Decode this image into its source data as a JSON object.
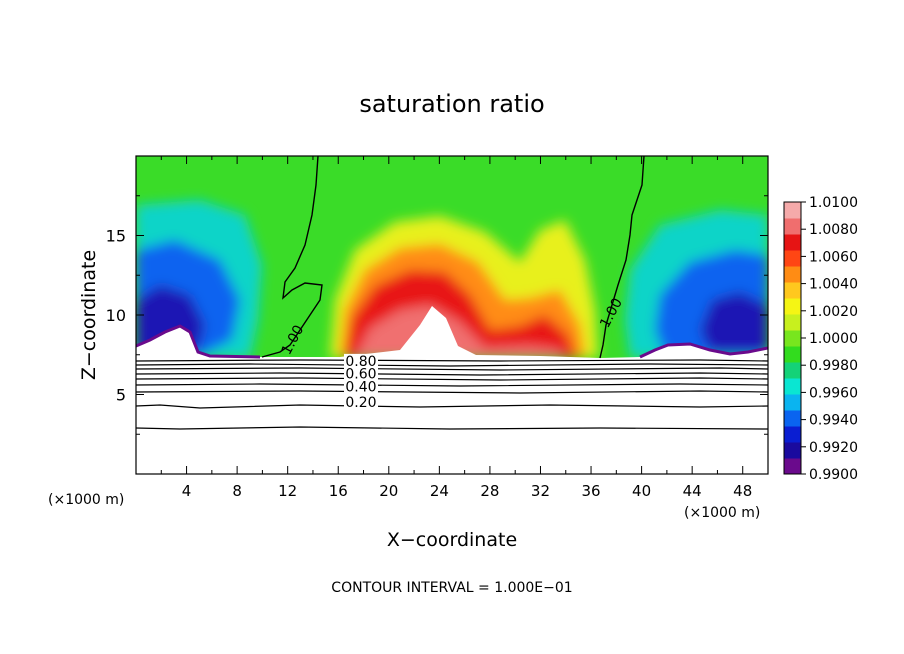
{
  "chart_data": {
    "type": "heatmap",
    "title": "saturation ratio",
    "xlabel": "X−coordinate",
    "ylabel": "Z−coordinate",
    "x_unit_left": "(×1000 m)",
    "x_unit_right": "(×1000 m)",
    "footer": "CONTOUR INTERVAL = 1.000E−01",
    "xlim": [
      0,
      50
    ],
    "ylim": [
      0,
      20
    ],
    "x_ticks": [
      4,
      8,
      12,
      16,
      20,
      24,
      28,
      32,
      36,
      40,
      44,
      48
    ],
    "x_tick_labels": [
      "4",
      "8",
      "12",
      "16",
      "20",
      "24",
      "28",
      "32",
      "36",
      "40",
      "44",
      "48"
    ],
    "y_ticks": [
      5,
      10,
      15
    ],
    "y_tick_labels": [
      "5",
      "10",
      "15"
    ],
    "colorbar": {
      "min": 0.99,
      "max": 1.01,
      "tick_values": [
        0.99,
        0.992,
        0.994,
        0.996,
        0.998,
        1.0,
        1.002,
        1.004,
        1.006,
        1.008,
        1.01
      ],
      "tick_labels": [
        "0.9900",
        "0.9920",
        "0.9940",
        "0.9960",
        "0.9980",
        "1.0000",
        "1.0020",
        "1.0040",
        "1.0060",
        "1.0080",
        "1.0100"
      ],
      "colors": [
        "#6a0a8c",
        "#1a0a9e",
        "#0a1ed2",
        "#0a64f0",
        "#0ab4f0",
        "#0ae6d2",
        "#14d278",
        "#32dc1e",
        "#78e61e",
        "#c8f01e",
        "#f5f514",
        "#ffc81e",
        "#ff8c14",
        "#ff4614",
        "#e61414",
        "#f06e6e",
        "#f5aaaa"
      ]
    },
    "contour_labels": [
      {
        "text": "1.00",
        "x": 12.7,
        "z": 8.3
      },
      {
        "text": "1.00",
        "x": 37.9,
        "z": 10.0
      },
      {
        "text": "0.80",
        "x": 17.8,
        "z": 6.8
      },
      {
        "text": "0.60",
        "x": 17.8,
        "z": 6.0
      },
      {
        "text": "0.40",
        "x": 17.8,
        "z": 5.2
      },
      {
        "text": "0.20",
        "x": 17.8,
        "z": 4.2
      }
    ]
  }
}
